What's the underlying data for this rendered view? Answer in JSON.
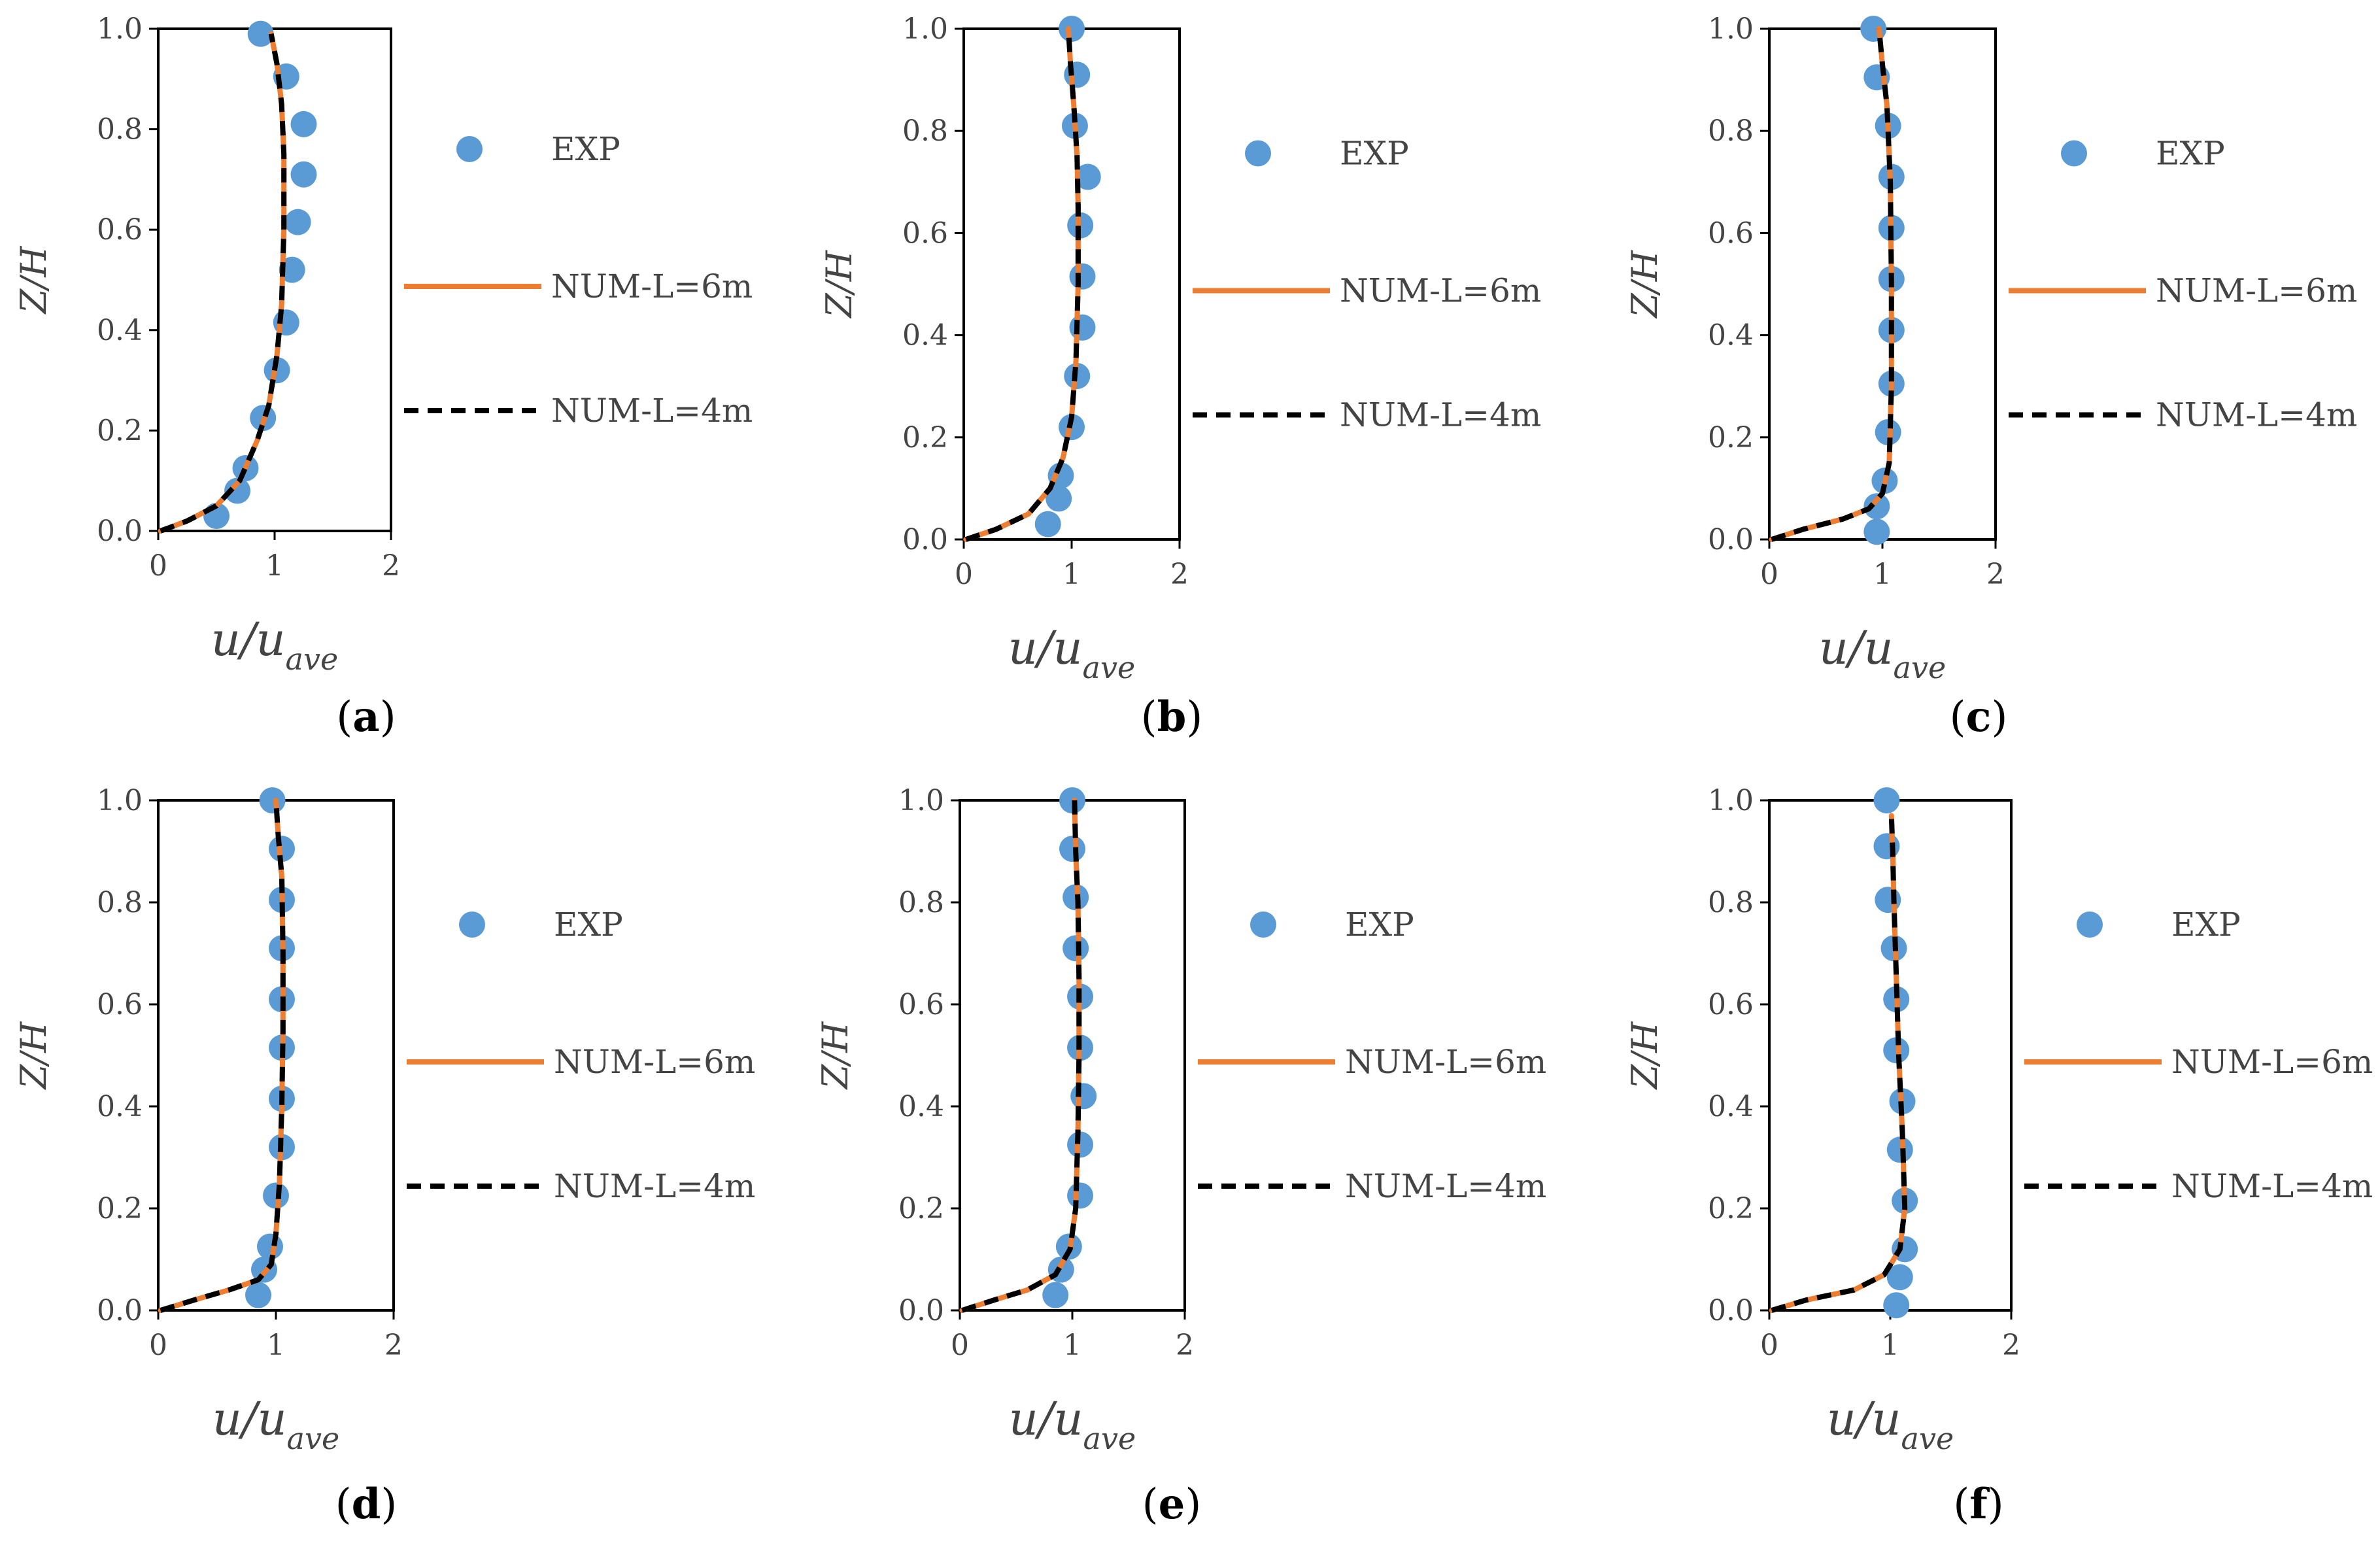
{
  "colors": {
    "exp": "#5b9bd5",
    "num6": "#ed7d31",
    "num4": "#000000",
    "frame": "#000000",
    "text": "#444444"
  },
  "chart_data": [
    {
      "type": "line",
      "panel": "a",
      "caption_open": "(",
      "caption_letter": "a",
      "caption_close": ")",
      "xlabel_main": "u/u",
      "xlabel_sub": "ave",
      "ylabel": "Z/H",
      "xlim": [
        0,
        2
      ],
      "ylim": [
        0,
        1
      ],
      "xticks": [
        "0",
        "1",
        "2"
      ],
      "yticks": [
        "0.0",
        "0.2",
        "0.4",
        "0.6",
        "0.8",
        "1.0"
      ],
      "legend": [
        "EXP",
        "NUM-L=6m",
        "NUM-L=4m"
      ],
      "series": [
        {
          "name": "EXP",
          "kind": "markers",
          "x": [
            0.5,
            0.68,
            0.75,
            0.9,
            1.02,
            1.1,
            1.15,
            1.2,
            1.25,
            1.25,
            1.1,
            0.88
          ],
          "y": [
            0.03,
            0.08,
            0.125,
            0.225,
            0.32,
            0.415,
            0.52,
            0.615,
            0.71,
            0.81,
            0.905,
            0.99
          ]
        },
        {
          "name": "NUM-L=6m",
          "kind": "solid",
          "x": [
            0.02,
            0.25,
            0.5,
            0.7,
            0.85,
            0.95,
            1.02,
            1.06,
            1.08,
            1.08,
            1.06,
            1.02,
            0.97
          ],
          "y": [
            0.0,
            0.02,
            0.05,
            0.1,
            0.18,
            0.25,
            0.35,
            0.45,
            0.6,
            0.75,
            0.85,
            0.93,
            0.99
          ]
        },
        {
          "name": "NUM-L=4m",
          "kind": "dashed",
          "x": [
            0.02,
            0.25,
            0.5,
            0.7,
            0.85,
            0.95,
            1.02,
            1.06,
            1.08,
            1.08,
            1.06,
            1.02,
            0.97
          ],
          "y": [
            0.0,
            0.02,
            0.05,
            0.1,
            0.18,
            0.25,
            0.35,
            0.45,
            0.6,
            0.75,
            0.85,
            0.93,
            0.99
          ]
        }
      ]
    },
    {
      "type": "line",
      "panel": "b",
      "caption_open": "(",
      "caption_letter": "b",
      "caption_close": ")",
      "xlabel_main": "u/u",
      "xlabel_sub": "ave",
      "ylabel": "Z/H",
      "xlim": [
        0,
        2
      ],
      "ylim": [
        0,
        1
      ],
      "xticks": [
        "0",
        "1",
        "2"
      ],
      "yticks": [
        "0.0",
        "0.2",
        "0.4",
        "0.6",
        "0.8",
        "1.0"
      ],
      "legend": [
        "EXP",
        "NUM-L=6m",
        "NUM-L=4m"
      ],
      "series": [
        {
          "name": "EXP",
          "kind": "markers",
          "x": [
            0.78,
            0.88,
            0.9,
            1.0,
            1.05,
            1.1,
            1.1,
            1.08,
            1.15,
            1.03,
            1.05,
            1.0
          ],
          "y": [
            0.03,
            0.08,
            0.125,
            0.22,
            0.32,
            0.415,
            0.515,
            0.615,
            0.71,
            0.81,
            0.91,
            1.0
          ]
        },
        {
          "name": "NUM-L=6m",
          "kind": "solid",
          "x": [
            0.02,
            0.3,
            0.6,
            0.8,
            0.92,
            1.0,
            1.04,
            1.06,
            1.06,
            1.05,
            1.02,
            0.99,
            0.97
          ],
          "y": [
            0.0,
            0.02,
            0.05,
            0.1,
            0.16,
            0.24,
            0.35,
            0.5,
            0.65,
            0.75,
            0.85,
            0.93,
            1.0
          ]
        },
        {
          "name": "NUM-L=4m",
          "kind": "dashed",
          "x": [
            0.02,
            0.3,
            0.6,
            0.8,
            0.92,
            1.0,
            1.04,
            1.06,
            1.06,
            1.05,
            1.02,
            0.99,
            0.97
          ],
          "y": [
            0.0,
            0.02,
            0.05,
            0.1,
            0.16,
            0.24,
            0.35,
            0.5,
            0.65,
            0.75,
            0.85,
            0.93,
            1.0
          ]
        }
      ]
    },
    {
      "type": "line",
      "panel": "c",
      "caption_open": "(",
      "caption_letter": "c",
      "caption_close": ")",
      "xlabel_main": "u/u",
      "xlabel_sub": "ave",
      "ylabel": "Z/H",
      "xlim": [
        0,
        2
      ],
      "ylim": [
        0,
        1
      ],
      "xticks": [
        "0",
        "1",
        "2"
      ],
      "yticks": [
        "0.0",
        "0.2",
        "0.4",
        "0.6",
        "0.8",
        "1.0"
      ],
      "legend": [
        "EXP",
        "NUM-L=6m",
        "NUM-L=4m"
      ],
      "series": [
        {
          "name": "EXP",
          "kind": "markers",
          "x": [
            0.95,
            0.95,
            1.02,
            1.05,
            1.08,
            1.08,
            1.08,
            1.08,
            1.08,
            1.05,
            0.95,
            0.92
          ],
          "y": [
            0.015,
            0.065,
            0.115,
            0.21,
            0.305,
            0.41,
            0.51,
            0.61,
            0.71,
            0.81,
            0.905,
            1.0
          ]
        },
        {
          "name": "NUM-L=6m",
          "kind": "solid",
          "x": [
            0.02,
            0.3,
            0.65,
            0.88,
            1.0,
            1.06,
            1.08,
            1.08,
            1.07,
            1.04,
            1.0,
            0.97
          ],
          "y": [
            0.0,
            0.02,
            0.04,
            0.06,
            0.09,
            0.15,
            0.3,
            0.5,
            0.7,
            0.85,
            0.93,
            1.0
          ]
        },
        {
          "name": "NUM-L=4m",
          "kind": "dashed",
          "x": [
            0.02,
            0.3,
            0.65,
            0.88,
            1.0,
            1.06,
            1.08,
            1.08,
            1.07,
            1.04,
            1.0,
            0.97
          ],
          "y": [
            0.0,
            0.02,
            0.04,
            0.06,
            0.09,
            0.15,
            0.3,
            0.5,
            0.7,
            0.85,
            0.93,
            1.0
          ]
        }
      ]
    },
    {
      "type": "line",
      "panel": "d",
      "caption_open": "(",
      "caption_letter": "d",
      "caption_close": ")",
      "xlabel_main": "u/u",
      "xlabel_sub": "ave",
      "ylabel": "Z/H",
      "xlim": [
        0,
        2
      ],
      "ylim": [
        0,
        1
      ],
      "xticks": [
        "0",
        "1",
        "2"
      ],
      "yticks": [
        "0.0",
        "0.2",
        "0.4",
        "0.6",
        "0.8",
        "1.0"
      ],
      "legend": [
        "EXP",
        "NUM-L=6m",
        "NUM-L=4m"
      ],
      "series": [
        {
          "name": "EXP",
          "kind": "markers",
          "x": [
            0.85,
            0.9,
            0.95,
            1.0,
            1.05,
            1.05,
            1.05,
            1.05,
            1.05,
            1.05,
            1.05,
            0.97
          ],
          "y": [
            0.03,
            0.08,
            0.125,
            0.225,
            0.32,
            0.415,
            0.515,
            0.61,
            0.71,
            0.805,
            0.905,
            1.0
          ]
        },
        {
          "name": "NUM-L=6m",
          "kind": "solid",
          "x": [
            0.02,
            0.3,
            0.6,
            0.85,
            0.96,
            1.0,
            1.03,
            1.05,
            1.06,
            1.06,
            1.05,
            1.02,
            1.0
          ],
          "y": [
            0.0,
            0.02,
            0.04,
            0.06,
            0.09,
            0.15,
            0.25,
            0.4,
            0.55,
            0.7,
            0.85,
            0.93,
            1.0
          ]
        },
        {
          "name": "NUM-L=4m",
          "kind": "dashed",
          "x": [
            0.02,
            0.3,
            0.6,
            0.85,
            0.96,
            1.0,
            1.03,
            1.05,
            1.06,
            1.06,
            1.05,
            1.02,
            1.0
          ],
          "y": [
            0.0,
            0.02,
            0.04,
            0.06,
            0.09,
            0.15,
            0.25,
            0.4,
            0.55,
            0.7,
            0.85,
            0.93,
            1.0
          ]
        }
      ]
    },
    {
      "type": "line",
      "panel": "e",
      "caption_open": "(",
      "caption_letter": "e",
      "caption_close": ")",
      "xlabel_main": "u/u",
      "xlabel_sub": "ave",
      "ylabel": "Z/H",
      "xlim": [
        0,
        2
      ],
      "ylim": [
        0,
        1
      ],
      "xticks": [
        "0",
        "1",
        "2"
      ],
      "yticks": [
        "0.0",
        "0.2",
        "0.4",
        "0.6",
        "0.8",
        "1.0"
      ],
      "legend": [
        "EXP",
        "NUM-L=6m",
        "NUM-L=4m"
      ],
      "series": [
        {
          "name": "EXP",
          "kind": "markers",
          "x": [
            0.85,
            0.9,
            0.97,
            1.07,
            1.07,
            1.1,
            1.07,
            1.07,
            1.03,
            1.03,
            1.0,
            1.0
          ],
          "y": [
            0.03,
            0.08,
            0.125,
            0.225,
            0.325,
            0.42,
            0.515,
            0.615,
            0.71,
            0.81,
            0.905,
            1.0
          ]
        },
        {
          "name": "NUM-L=6m",
          "kind": "solid",
          "x": [
            0.02,
            0.3,
            0.6,
            0.85,
            0.98,
            1.03,
            1.05,
            1.06,
            1.06,
            1.05,
            1.03,
            1.02
          ],
          "y": [
            0.0,
            0.02,
            0.04,
            0.07,
            0.12,
            0.2,
            0.35,
            0.5,
            0.65,
            0.8,
            0.9,
            1.0
          ]
        },
        {
          "name": "NUM-L=4m",
          "kind": "dashed",
          "x": [
            0.02,
            0.3,
            0.6,
            0.85,
            0.98,
            1.03,
            1.05,
            1.06,
            1.06,
            1.05,
            1.03,
            1.02
          ],
          "y": [
            0.0,
            0.02,
            0.04,
            0.07,
            0.12,
            0.2,
            0.35,
            0.5,
            0.65,
            0.8,
            0.9,
            1.0
          ]
        }
      ]
    },
    {
      "type": "line",
      "panel": "f",
      "caption_open": "(",
      "caption_letter": "f",
      "caption_close": ")",
      "xlabel_main": "u/u",
      "xlabel_sub": "ave",
      "ylabel": "Z/H",
      "xlim": [
        0,
        2
      ],
      "ylim": [
        0,
        1
      ],
      "xticks": [
        "0",
        "1",
        "2"
      ],
      "yticks": [
        "0.0",
        "0.2",
        "0.4",
        "0.6",
        "0.8",
        "1.0"
      ],
      "legend": [
        "EXP",
        "NUM-L=6m",
        "NUM-L=4m"
      ],
      "series": [
        {
          "name": "EXP",
          "kind": "markers",
          "x": [
            1.05,
            1.08,
            1.12,
            1.12,
            1.08,
            1.1,
            1.05,
            1.05,
            1.03,
            0.98,
            0.97,
            0.97
          ],
          "y": [
            0.01,
            0.065,
            0.12,
            0.215,
            0.315,
            0.41,
            0.51,
            0.61,
            0.71,
            0.805,
            0.91,
            1.0
          ]
        },
        {
          "name": "NUM-L=6m",
          "kind": "solid",
          "x": [
            0.02,
            0.3,
            0.7,
            0.95,
            1.08,
            1.12,
            1.1,
            1.07,
            1.05,
            1.03,
            1.02,
            1.01
          ],
          "y": [
            0.0,
            0.02,
            0.04,
            0.07,
            0.12,
            0.2,
            0.35,
            0.5,
            0.65,
            0.8,
            0.9,
            0.97
          ]
        },
        {
          "name": "NUM-L=4m",
          "kind": "dashed",
          "x": [
            0.02,
            0.3,
            0.7,
            0.95,
            1.08,
            1.12,
            1.1,
            1.07,
            1.05,
            1.03,
            1.02,
            1.01
          ],
          "y": [
            0.0,
            0.02,
            0.04,
            0.07,
            0.12,
            0.2,
            0.35,
            0.5,
            0.65,
            0.8,
            0.9,
            0.97
          ]
        }
      ]
    }
  ]
}
